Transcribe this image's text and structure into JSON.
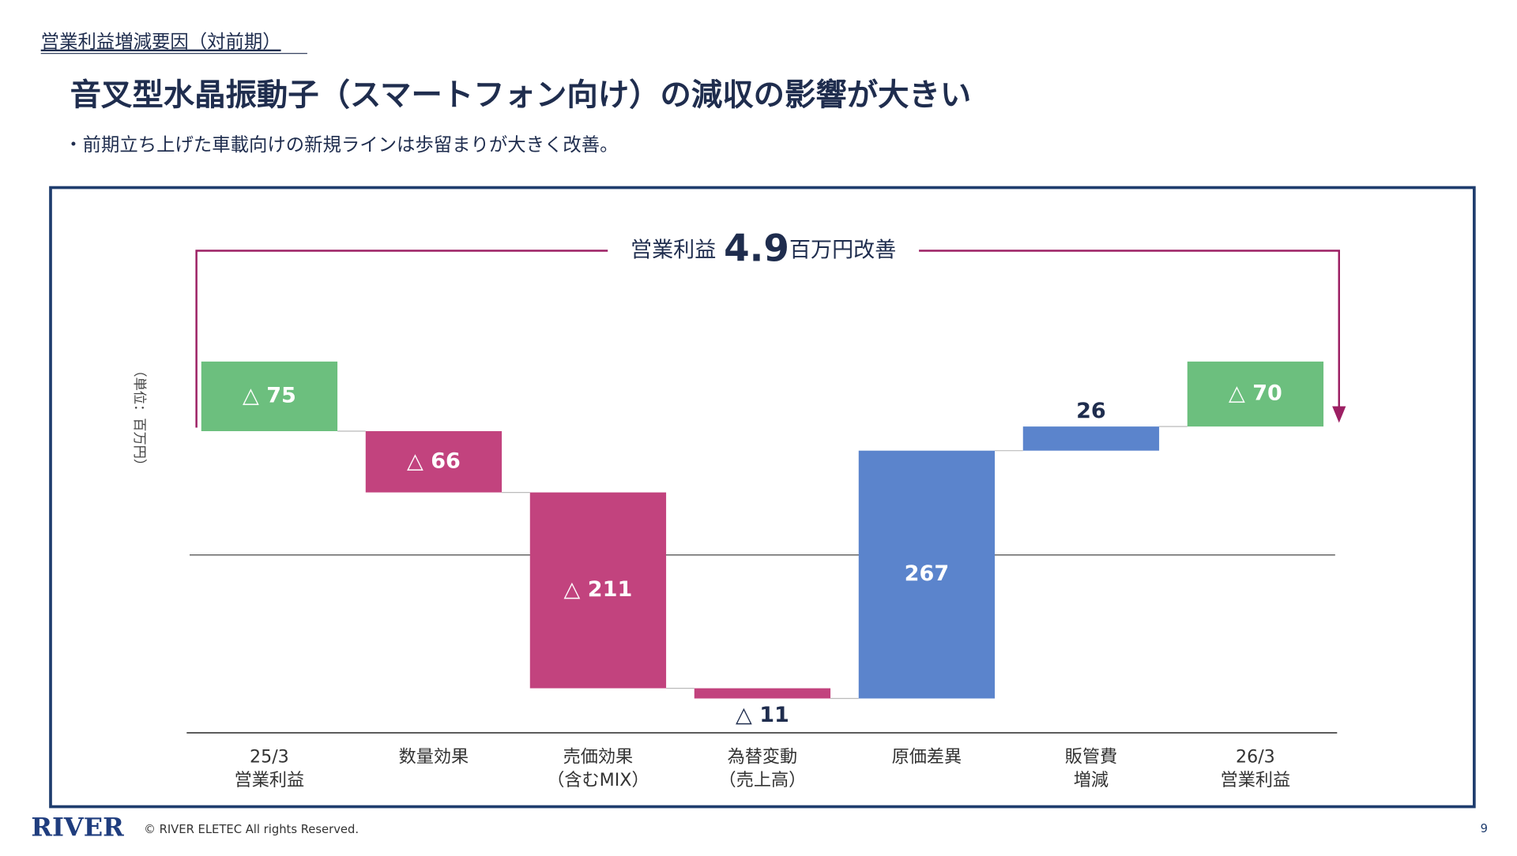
{
  "header": {
    "section": "営業利益増減要因（対前期）",
    "title": "音叉型水晶振動子（スマートフォン向け）の減収の影響が大きい",
    "bullet": "・前期立ち上げた車載向けの新規ラインは歩留まりが大きく改善。"
  },
  "chart_data": {
    "type": "waterfall",
    "annotation": {
      "prefix": "営業利益",
      "number": "4.9",
      "suffix": "百万円改善"
    },
    "unit_label": "（単位：百万円）",
    "categories": [
      [
        "25/3",
        "営業利益"
      ],
      [
        "数量効果"
      ],
      [
        "売価効果",
        "（含むMIX）"
      ],
      [
        "為替変動",
        "（売上高）"
      ],
      [
        "原価差異"
      ],
      [
        "販管費",
        "増減"
      ],
      [
        "26/3",
        "営業利益"
      ]
    ],
    "values": [
      -75,
      -66,
      -211,
      -11,
      267,
      26,
      -70
    ],
    "value_labels": [
      "△ 75",
      "△ 66",
      "△ 211",
      "△ 11",
      "267",
      "26",
      "△ 70"
    ],
    "totals": [
      true,
      false,
      false,
      false,
      false,
      false,
      true
    ],
    "colors": [
      "#6cbf7e",
      "#c2437e",
      "#c2437e",
      "#c2437e",
      "#5b84cc",
      "#5b84cc",
      "#6cbf7e"
    ],
    "ylim": [
      -400,
      0
    ]
  },
  "footer": {
    "logo": "RIVER",
    "copyright": "© RIVER ELETEC All rights Reserved.",
    "page": "9"
  }
}
